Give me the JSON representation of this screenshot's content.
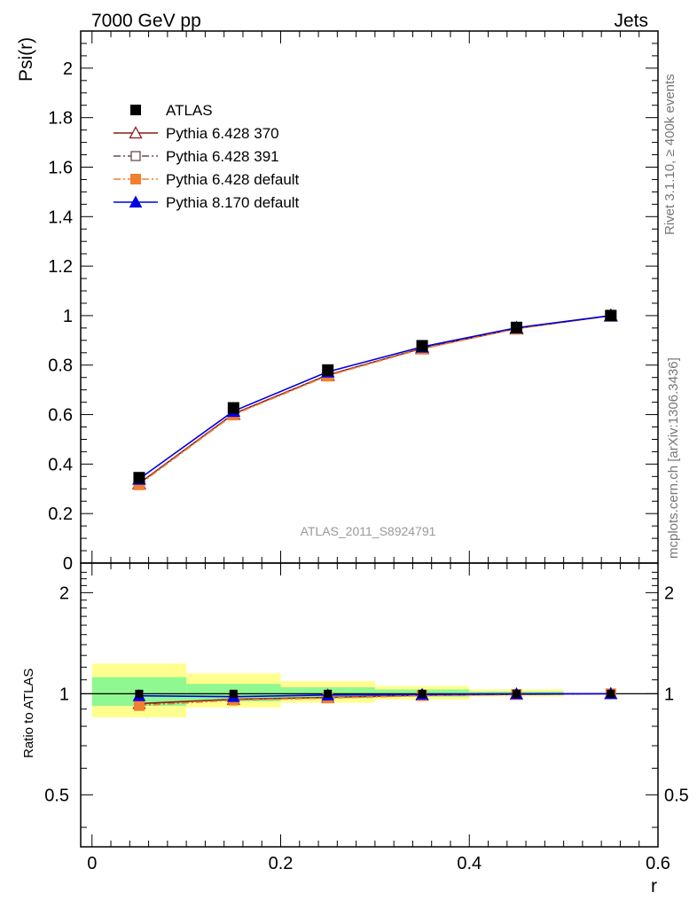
{
  "header": {
    "left": "7000 GeV pp",
    "right": "Jets"
  },
  "side_labels": {
    "rivet": "Rivet 3.1.10, ≥ 400k events",
    "mcplots": "mcplots.cern.ch [arXiv:1306.3436]"
  },
  "colors": {
    "atlas": "#000000",
    "py6_370": "#8b1a1a",
    "py6_391": "#6b4a4a",
    "py6_default": "#f08030",
    "py8_default": "#0000e0",
    "band_inner": "#90f890",
    "band_outer": "#ffff90"
  },
  "chart_data": [
    {
      "type": "line",
      "panel": "main",
      "analysis_label": "ATLAS_2011_S8924791",
      "xlabel": "",
      "ylabel": "Psi(r)",
      "xlim": [
        -0.012,
        0.6
      ],
      "ylim": [
        0,
        2.15
      ],
      "yticks": [
        0,
        0.2,
        0.4,
        0.6,
        0.8,
        1,
        1.2,
        1.4,
        1.6,
        1.8,
        2
      ],
      "ytick_labels": [
        "0",
        "0.2",
        "0.4",
        "0.6",
        "0.8",
        "1",
        "1.2",
        "1.4",
        "1.6",
        "1.8",
        "2"
      ],
      "legend_position": "top-left",
      "x": [
        0.05,
        0.15,
        0.25,
        0.35,
        0.45,
        0.55
      ],
      "series": [
        {
          "name": "ATLAS",
          "key": "atlas",
          "marker": "square-filled",
          "line": "none",
          "values": [
            0.345,
            0.627,
            0.78,
            0.878,
            0.952,
            1.0
          ]
        },
        {
          "name": "Pythia 6.428 370",
          "key": "py6_370",
          "marker": "triangle-open",
          "line": "solid",
          "values": [
            0.322,
            0.603,
            0.76,
            0.868,
            0.948,
            1.0
          ]
        },
        {
          "name": "Pythia 6.428 391",
          "key": "py6_391",
          "marker": "square-open",
          "line": "dashdot",
          "values": [
            0.318,
            0.6,
            0.758,
            0.867,
            0.948,
            1.0
          ]
        },
        {
          "name": "Pythia 6.428 default",
          "key": "py6_default",
          "marker": "square-filled",
          "line": "dashdot",
          "values": [
            0.318,
            0.6,
            0.757,
            0.866,
            0.947,
            1.0
          ]
        },
        {
          "name": "Pythia 8.170 default",
          "key": "py8_default",
          "marker": "triangle-filled",
          "line": "solid",
          "values": [
            0.34,
            0.614,
            0.773,
            0.874,
            0.951,
            1.0
          ]
        }
      ]
    },
    {
      "type": "line",
      "panel": "ratio",
      "xlabel": "r",
      "ylabel": "Ratio to ATLAS",
      "xlim": [
        -0.012,
        0.6
      ],
      "ylim": [
        0.35,
        2.45
      ],
      "log_y": true,
      "yticks": [
        0.5,
        1,
        2
      ],
      "ytick_labels": [
        "0.5",
        "1",
        "2"
      ],
      "xticks": [
        0,
        0.2,
        0.4,
        0.6
      ],
      "xtick_labels": [
        "0",
        "0.2",
        "0.4",
        "0.6"
      ],
      "x": [
        0.05,
        0.15,
        0.25,
        0.35,
        0.45,
        0.55
      ],
      "bands": [
        {
          "x_low": 0.0,
          "x_high": 0.1,
          "inner": [
            0.92,
            1.12
          ],
          "outer": [
            0.85,
            1.23
          ]
        },
        {
          "x_low": 0.1,
          "x_high": 0.2,
          "inner": [
            0.95,
            1.07
          ],
          "outer": [
            0.91,
            1.15
          ]
        },
        {
          "x_low": 0.2,
          "x_high": 0.3,
          "inner": [
            0.97,
            1.045
          ],
          "outer": [
            0.94,
            1.09
          ]
        },
        {
          "x_low": 0.3,
          "x_high": 0.4,
          "inner": [
            0.98,
            1.03
          ],
          "outer": [
            0.96,
            1.055
          ]
        },
        {
          "x_low": 0.4,
          "x_high": 0.5,
          "inner": [
            0.99,
            1.015
          ],
          "outer": [
            0.98,
            1.03
          ]
        }
      ],
      "series": [
        {
          "name": "Pythia 6.428 370",
          "key": "py6_370",
          "marker": "triangle-open",
          "line": "solid",
          "values": [
            0.935,
            0.962,
            0.975,
            0.99,
            0.996,
            1.0
          ]
        },
        {
          "name": "Pythia 6.428 391",
          "key": "py6_391",
          "marker": "square-open",
          "line": "dashdot",
          "values": [
            0.925,
            0.958,
            0.972,
            0.988,
            0.996,
            1.0
          ]
        },
        {
          "name": "Pythia 6.428 default",
          "key": "py6_default",
          "marker": "square-filled",
          "line": "dashdot",
          "values": [
            0.922,
            0.957,
            0.971,
            0.987,
            0.995,
            1.0
          ]
        },
        {
          "name": "Pythia 8.170 default",
          "key": "py8_default",
          "marker": "triangle-filled",
          "line": "solid",
          "values": [
            0.986,
            0.98,
            0.991,
            0.995,
            0.999,
            1.0
          ]
        }
      ]
    }
  ]
}
